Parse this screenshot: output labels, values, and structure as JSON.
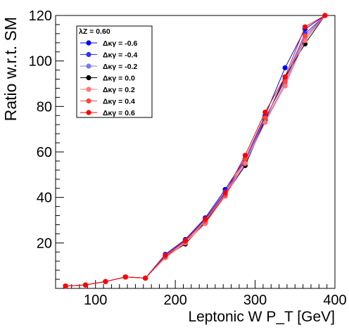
{
  "chart_data": {
    "type": "line",
    "title": "",
    "xlabel": "Leptonic W P_T [GeV]",
    "ylabel": "Ratio w.r.t. SM",
    "xlim": [
      50,
      400
    ],
    "ylim": [
      0,
      120
    ],
    "x_ticks": [
      100,
      200,
      300,
      400
    ],
    "y_ticks": [
      20,
      40,
      60,
      80,
      100,
      120
    ],
    "grid": false,
    "legend_position": "top-left",
    "legend_header": "λZ = 0.60",
    "x": [
      62.5,
      87.5,
      112.5,
      137.5,
      162.5,
      187.5,
      212.5,
      237.5,
      262.5,
      287.5,
      312.5,
      337.5,
      362.5,
      387.5
    ],
    "series": [
      {
        "name": "Δκγ = -0.6",
        "color": "#0000ff",
        "values": [
          1,
          1.5,
          3,
          5,
          4.5,
          15,
          21.5,
          31,
          43.5,
          57,
          76,
          97,
          114,
          120
        ]
      },
      {
        "name": "Δκγ = -0.4",
        "color": "#3333ff",
        "values": [
          1,
          1.5,
          3,
          5,
          4.5,
          14.8,
          21.2,
          30.5,
          42.5,
          56,
          74.5,
          92,
          112,
          120
        ]
      },
      {
        "name": "Δκγ = -0.2",
        "color": "#7777ff",
        "values": [
          1,
          1.5,
          3,
          5,
          4.5,
          14.5,
          21,
          30,
          41.5,
          55,
          73.5,
          90,
          110,
          120
        ]
      },
      {
        "name": "Δκγ = 0.0",
        "color": "#000000",
        "values": [
          1,
          1.5,
          3,
          5,
          4.5,
          14,
          19.5,
          29,
          41,
          54,
          74,
          93,
          107.5,
          120
        ]
      },
      {
        "name": "Δκγ = 0.2",
        "color": "#ff7777",
        "values": [
          1,
          1.5,
          3,
          5,
          4.5,
          13.5,
          20,
          28.5,
          40.5,
          55,
          73,
          89,
          109,
          120
        ]
      },
      {
        "name": "Δκγ = 0.4",
        "color": "#ff4444",
        "values": [
          1,
          1.5,
          3,
          5,
          4.5,
          14,
          20.5,
          29.5,
          41,
          57,
          75,
          91,
          111,
          120
        ]
      },
      {
        "name": "Δκγ = 0.6",
        "color": "#ff0000",
        "values": [
          1,
          1.5,
          3,
          5,
          4.5,
          14.5,
          21,
          30.5,
          42,
          58.5,
          77.5,
          93,
          115,
          120
        ]
      }
    ]
  }
}
